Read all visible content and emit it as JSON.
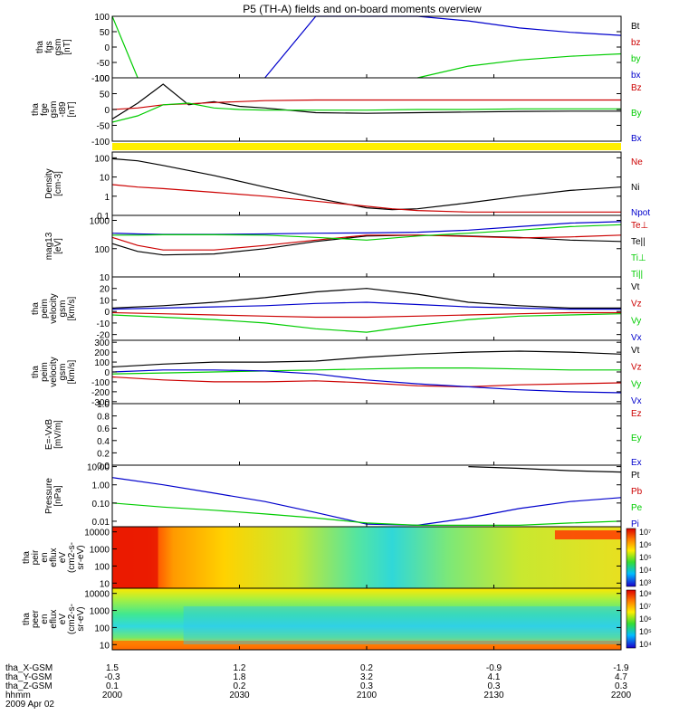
{
  "title": "P5 (TH-A) fields and on-board moments overview",
  "colors": {
    "black": "#000000",
    "red": "#cc0000",
    "blue": "#0000cc",
    "green": "#00cc00",
    "yellow": "#ffee00"
  },
  "footer": {
    "rows": [
      {
        "label": "tha_X-GSM",
        "values": [
          "1.5",
          "1.2",
          "0.2",
          "-0.9",
          "-1.9"
        ]
      },
      {
        "label": "tha_Y-GSM",
        "values": [
          "-0.3",
          "1.8",
          "3.2",
          "4.1",
          "4.7"
        ]
      },
      {
        "label": "tha_Z-GSM",
        "values": [
          "0.1",
          "0.2",
          "0.3",
          "0.3",
          "0.3"
        ]
      },
      {
        "label": "hhmm",
        "values": [
          "2000",
          "2030",
          "2100",
          "2130",
          "2200"
        ]
      }
    ],
    "date": "2009 Apr 02"
  },
  "chart_data": [
    {
      "type": "line",
      "ylabel": [
        "tha",
        "fgs",
        "gsm",
        "[nT]"
      ],
      "ticks": [
        "100",
        "50",
        "0",
        "-50",
        "-100"
      ],
      "ylim": [
        -100,
        100
      ],
      "legend": [
        {
          "text": "Bt",
          "color": "black"
        },
        {
          "text": "bz",
          "color": "red"
        },
        {
          "text": "by",
          "color": "green"
        },
        {
          "text": "bx",
          "color": "blue"
        }
      ],
      "x": [
        0,
        0.05,
        0.1,
        0.2,
        0.3,
        0.4,
        0.5,
        0.6,
        0.7,
        0.8,
        0.9,
        1.0
      ],
      "series": [
        {
          "color": "green",
          "values": [
            100,
            -100,
            null,
            null,
            null,
            null,
            null,
            -100,
            -62,
            -42,
            -30,
            -22
          ]
        },
        {
          "color": "blue",
          "values": [
            null,
            null,
            null,
            null,
            -100,
            100,
            100,
            100,
            85,
            62,
            48,
            38
          ]
        }
      ]
    },
    {
      "type": "line",
      "ylabel": [
        "tha",
        "fge",
        "gsm",
        "-t89",
        "[nT]"
      ],
      "ticks": [
        "100",
        "50",
        "0",
        "-50",
        "-100"
      ],
      "ylim": [
        -100,
        100
      ],
      "legend": [
        {
          "text": "Bz",
          "color": "red"
        },
        {
          "text": "By",
          "color": "green"
        },
        {
          "text": "Bx",
          "color": "blue"
        }
      ],
      "x": [
        0,
        0.05,
        0.1,
        0.15,
        0.2,
        0.25,
        0.3,
        0.4,
        0.5,
        0.6,
        0.7,
        0.8,
        0.9,
        1.0
      ],
      "series": [
        {
          "color": "black",
          "values": [
            -30,
            20,
            80,
            15,
            25,
            10,
            5,
            -10,
            -12,
            -10,
            -8,
            -6,
            -5,
            -5
          ]
        },
        {
          "color": "red",
          "values": [
            0,
            5,
            15,
            18,
            22,
            25,
            28,
            30,
            30,
            30,
            30,
            30,
            30,
            30
          ]
        },
        {
          "color": "green",
          "values": [
            -40,
            -20,
            15,
            20,
            5,
            0,
            -2,
            -2,
            -2,
            0,
            0,
            2,
            2,
            2
          ]
        }
      ]
    },
    {
      "type": "line",
      "scale": "log",
      "ylabel": [
        "Density",
        "[cm-3]"
      ],
      "ticks": [
        "100",
        "10",
        "1",
        "0.1"
      ],
      "ylim": [
        0.1,
        200
      ],
      "legend": [
        {
          "text": "Ne",
          "color": "red"
        },
        {
          "text": "Ni",
          "color": "black"
        },
        {
          "text": "Npot",
          "color": "blue"
        }
      ],
      "x": [
        0,
        0.05,
        0.1,
        0.2,
        0.3,
        0.4,
        0.5,
        0.55,
        0.6,
        0.7,
        0.8,
        0.9,
        1.0
      ],
      "series": [
        {
          "color": "black",
          "values": [
            90,
            70,
            40,
            12,
            3,
            0.8,
            0.25,
            0.2,
            0.22,
            0.45,
            1.0,
            2.0,
            3.0
          ]
        },
        {
          "color": "red",
          "values": [
            4,
            3,
            2.5,
            1.6,
            1.0,
            0.55,
            0.3,
            0.22,
            0.18,
            0.15,
            0.15,
            0.15,
            0.15
          ]
        }
      ]
    },
    {
      "type": "line",
      "scale": "log",
      "ylabel": [
        "mag13",
        "[eV]"
      ],
      "ticks": [
        "1000",
        "100",
        "10"
      ],
      "ylim": [
        10,
        1500
      ],
      "legend": [
        {
          "text": "Te⊥",
          "color": "red"
        },
        {
          "text": "Te||",
          "color": "black"
        },
        {
          "text": "Ti⊥",
          "color": "green"
        },
        {
          "text": "Ti||",
          "color": "green"
        }
      ],
      "x": [
        0,
        0.05,
        0.1,
        0.2,
        0.3,
        0.4,
        0.5,
        0.6,
        0.7,
        0.8,
        0.9,
        1.0
      ],
      "series": [
        {
          "color": "black",
          "values": [
            150,
            80,
            60,
            65,
            100,
            180,
            280,
            300,
            280,
            250,
            200,
            180
          ]
        },
        {
          "color": "red",
          "values": [
            250,
            130,
            90,
            90,
            130,
            200,
            300,
            300,
            270,
            240,
            260,
            300
          ]
        },
        {
          "color": "blue",
          "values": [
            350,
            330,
            320,
            320,
            330,
            350,
            360,
            380,
            450,
            600,
            800,
            900
          ]
        },
        {
          "color": "green",
          "values": [
            300,
            300,
            310,
            310,
            300,
            250,
            200,
            280,
            350,
            450,
            600,
            700
          ]
        }
      ]
    },
    {
      "type": "line",
      "ylabel": [
        "tha",
        "peim",
        "velocity",
        "gsm",
        "[km/s]"
      ],
      "ticks": [
        "20",
        "10",
        "0",
        "-10",
        "-20"
      ],
      "ylim": [
        -25,
        30
      ],
      "legend": [
        {
          "text": "Vt",
          "color": "black"
        },
        {
          "text": "Vz",
          "color": "red"
        },
        {
          "text": "Vy",
          "color": "green"
        },
        {
          "text": "Vx",
          "color": "blue"
        }
      ],
      "x": [
        0,
        0.1,
        0.2,
        0.3,
        0.4,
        0.5,
        0.6,
        0.7,
        0.8,
        0.9,
        1.0
      ],
      "series": [
        {
          "color": "black",
          "values": [
            3,
            5,
            8,
            12,
            17,
            20,
            15,
            8,
            5,
            3,
            3
          ]
        },
        {
          "color": "blue",
          "values": [
            2,
            3,
            4,
            5,
            7,
            8,
            6,
            4,
            3,
            2,
            2
          ]
        },
        {
          "color": "red",
          "values": [
            -1,
            -2,
            -3,
            -4,
            -5,
            -5,
            -4,
            -3,
            -2,
            -1,
            -1
          ]
        },
        {
          "color": "green",
          "values": [
            -3,
            -5,
            -7,
            -10,
            -15,
            -18,
            -12,
            -7,
            -4,
            -3,
            -2
          ]
        }
      ]
    },
    {
      "type": "line",
      "ylabel": [
        "tha",
        "peim",
        "velocity",
        "gsm",
        "[km/s]"
      ],
      "ticks": [
        "300",
        "200",
        "100",
        "0",
        "-100",
        "-200",
        "-300"
      ],
      "ylim": [
        -320,
        320
      ],
      "legend": [
        {
          "text": "Vt",
          "color": "black"
        },
        {
          "text": "Vz",
          "color": "red"
        },
        {
          "text": "Vy",
          "color": "green"
        },
        {
          "text": "Vx",
          "color": "blue"
        }
      ],
      "x": [
        0,
        0.1,
        0.2,
        0.3,
        0.4,
        0.5,
        0.6,
        0.7,
        0.8,
        0.9,
        1.0
      ],
      "series": [
        {
          "color": "black",
          "values": [
            50,
            80,
            100,
            100,
            110,
            150,
            180,
            200,
            210,
            200,
            180
          ]
        },
        {
          "color": "green",
          "values": [
            -20,
            -10,
            0,
            10,
            20,
            30,
            40,
            40,
            30,
            20,
            20
          ]
        },
        {
          "color": "red",
          "values": [
            -50,
            -80,
            -100,
            -100,
            -90,
            -110,
            -140,
            -150,
            -130,
            -120,
            -110
          ]
        },
        {
          "color": "blue",
          "values": [
            0,
            20,
            20,
            10,
            -20,
            -80,
            -120,
            -150,
            -180,
            -200,
            -210
          ]
        }
      ]
    },
    {
      "type": "line",
      "ylabel": [
        "E=-VxB",
        "[mV/m]"
      ],
      "ticks": [
        "1.0",
        "0.8",
        "0.6",
        "0.4",
        "0.2",
        "0.0"
      ],
      "ylim": [
        0,
        1
      ],
      "legend": [
        {
          "text": "Ez",
          "color": "red"
        },
        {
          "text": "Ey",
          "color": "green"
        },
        {
          "text": "Ex",
          "color": "blue"
        }
      ],
      "x": [],
      "series": []
    },
    {
      "type": "line",
      "scale": "log",
      "ylabel": [
        "Pressure",
        "[nPa]"
      ],
      "ticks": [
        "10.00",
        "1.00",
        "0.10",
        "0.01"
      ],
      "ylim": [
        0.005,
        12
      ],
      "legend": [
        {
          "text": "Pt",
          "color": "black"
        },
        {
          "text": "Pb",
          "color": "red"
        },
        {
          "text": "Pe",
          "color": "green"
        },
        {
          "text": "Pi",
          "color": "blue"
        }
      ],
      "x": [
        0,
        0.1,
        0.2,
        0.3,
        0.4,
        0.5,
        0.6,
        0.7,
        0.8,
        0.9,
        1.0
      ],
      "series": [
        {
          "color": "blue",
          "values": [
            2.5,
            1.0,
            0.35,
            0.12,
            0.03,
            0.007,
            0.006,
            0.015,
            0.05,
            0.12,
            0.2
          ]
        },
        {
          "color": "green",
          "values": [
            0.1,
            0.06,
            0.04,
            0.025,
            0.015,
            0.008,
            0.006,
            0.006,
            0.006,
            0.008,
            0.01
          ]
        },
        {
          "color": "black",
          "values": [
            null,
            null,
            null,
            null,
            null,
            null,
            null,
            10,
            8,
            6,
            5
          ]
        }
      ]
    },
    {
      "type": "heatmap",
      "ylabel": [
        "tha",
        "peir",
        "en",
        "eflux",
        "eV",
        "(cm2-s-",
        "sr-eV)"
      ],
      "ticks": [
        "10000",
        "1000",
        "100",
        "10"
      ],
      "ylim": [
        5,
        20000
      ],
      "colorbar_ticks": [
        "10⁷",
        "10⁶",
        "10⁵",
        "10⁴",
        "10³"
      ]
    },
    {
      "type": "heatmap",
      "ylabel": [
        "tha",
        "peer",
        "en",
        "eflux",
        "eV",
        "(cm2-s-",
        "sr-eV)"
      ],
      "ticks": [
        "10000",
        "1000",
        "100",
        "10"
      ],
      "ylim": [
        5,
        20000
      ],
      "colorbar_ticks": [
        "10⁸",
        "10⁷",
        "10⁶",
        "10⁵",
        "10⁴"
      ]
    }
  ]
}
